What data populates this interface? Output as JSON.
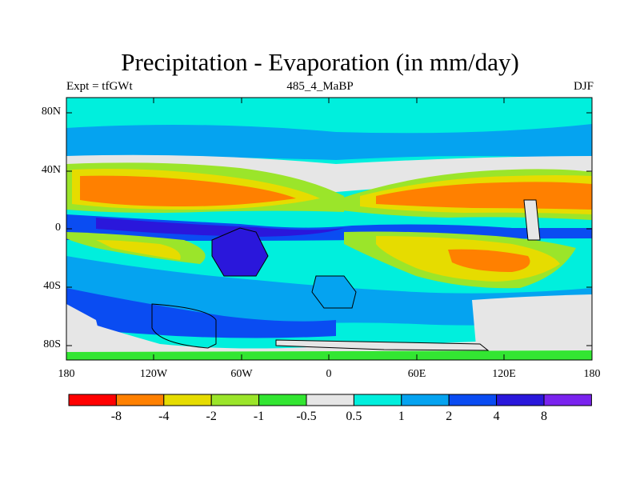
{
  "title": "Precipitation - Evaporation (in mm/day)",
  "subtitle_left": "Expt = tfGWt",
  "subtitle_center": "485_4_MaBP",
  "subtitle_right": "DJF",
  "y_ticks": [
    "80N",
    "40N",
    "0",
    "40S",
    "80S"
  ],
  "x_ticks": [
    "180",
    "120W",
    "60W",
    "0",
    "60E",
    "120E",
    "180"
  ],
  "colorbar": {
    "colors": [
      "#ff0000",
      "#ff8000",
      "#e6dc00",
      "#9be52a",
      "#33e632",
      "#e6e6e6",
      "#00efdd",
      "#05a3f0",
      "#0a4cf2",
      "#2a17db",
      "#7a23ee"
    ],
    "labels": [
      "-8",
      "-4",
      "-2",
      "-1",
      "-0.5",
      "0.5",
      "1",
      "2",
      "4",
      "8"
    ]
  },
  "legend": {
    "strong_evap": "#ff8000",
    "evap": "#e6dc00",
    "weak_evap": "#9be52a",
    "slight_evap": "#33e632",
    "neutral": "#e6e6e6",
    "slight_precip": "#00efdd",
    "precip": "#05a3f0",
    "strong_precip": "#0a4cf2",
    "very_strong_precip": "#2a17db"
  }
}
